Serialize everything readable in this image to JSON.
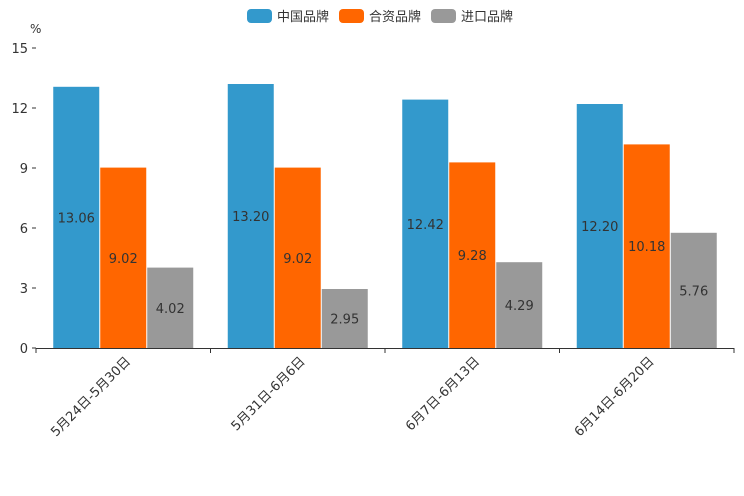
{
  "chart_data": {
    "type": "bar",
    "unit_label": "%",
    "categories": [
      "5月24日-5月30日",
      "5月31日-6月6日",
      "6月7日-6月13日",
      "6月14日-6月20日"
    ],
    "series": [
      {
        "name": "中国品牌",
        "color": "#3399cc",
        "values": [
          13.06,
          13.2,
          12.42,
          12.2
        ]
      },
      {
        "name": "合资品牌",
        "color": "#ff6600",
        "values": [
          9.02,
          9.02,
          9.28,
          10.18
        ]
      },
      {
        "name": "进口品牌",
        "color": "#999999",
        "values": [
          4.02,
          2.95,
          4.29,
          5.76
        ]
      }
    ],
    "ylim": [
      0,
      15
    ],
    "yticks": [
      0,
      3,
      6,
      9,
      12,
      15
    ],
    "legend_position": "top-center",
    "grid": false
  }
}
